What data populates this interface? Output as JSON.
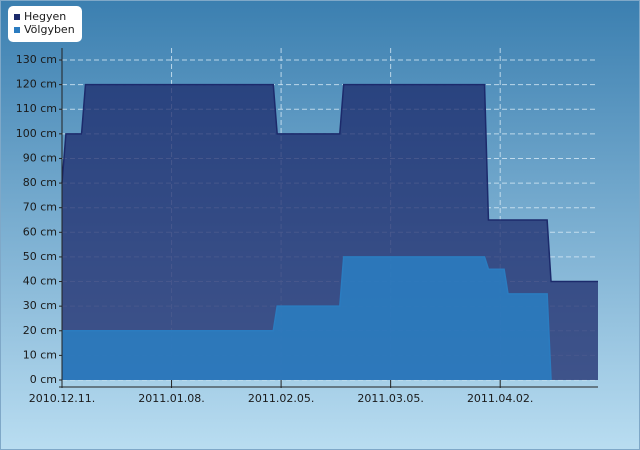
{
  "chart_data": {
    "type": "area",
    "series": [
      {
        "name": "Hegyen",
        "color": "#1c2a6b",
        "x": [
          "2010-12-11",
          "2010-12-12",
          "2010-12-16",
          "2010-12-17",
          "2011-02-03",
          "2011-02-04",
          "2011-02-20",
          "2011-02-21",
          "2011-03-29",
          "2011-03-30",
          "2011-04-14",
          "2011-04-15",
          "2011-04-27"
        ],
        "values": [
          80,
          100,
          100,
          120,
          120,
          100,
          100,
          120,
          120,
          65,
          65,
          40,
          40
        ]
      },
      {
        "name": "Völgyben",
        "color": "#2b7cc0",
        "x": [
          "2010-12-11",
          "2011-02-03",
          "2011-02-04",
          "2011-02-20",
          "2011-02-21",
          "2011-03-29",
          "2011-03-30",
          "2011-04-03",
          "2011-04-04",
          "2011-04-14",
          "2011-04-15"
        ],
        "values": [
          20,
          20,
          30,
          30,
          50,
          50,
          45,
          45,
          35,
          35,
          0
        ]
      }
    ],
    "xlim": [
      "2010-12-11",
      "2011-04-27"
    ],
    "xticks": [
      {
        "value": "2010-12-11",
        "label": "2010.12.11."
      },
      {
        "value": "2011-01-08",
        "label": "2011.01.08."
      },
      {
        "value": "2011-02-05",
        "label": "2011.02.05."
      },
      {
        "value": "2011-03-05",
        "label": "2011.03.05."
      },
      {
        "value": "2011-04-02",
        "label": "2011.04.02."
      }
    ],
    "ylim": [
      0,
      130
    ],
    "yticks": [
      {
        "value": 0,
        "label": "0 cm"
      },
      {
        "value": 10,
        "label": "10 cm"
      },
      {
        "value": 20,
        "label": "20 cm"
      },
      {
        "value": 30,
        "label": "30 cm"
      },
      {
        "value": 40,
        "label": "40 cm"
      },
      {
        "value": 50,
        "label": "50 cm"
      },
      {
        "value": 60,
        "label": "60 cm"
      },
      {
        "value": 70,
        "label": "70 cm"
      },
      {
        "value": 80,
        "label": "80 cm"
      },
      {
        "value": 90,
        "label": "90 cm"
      },
      {
        "value": 100,
        "label": "100 cm"
      },
      {
        "value": 110,
        "label": "110 cm"
      },
      {
        "value": 120,
        "label": "120 cm"
      },
      {
        "value": 130,
        "label": "130 cm"
      }
    ],
    "grid": true,
    "legend": "top-left"
  }
}
